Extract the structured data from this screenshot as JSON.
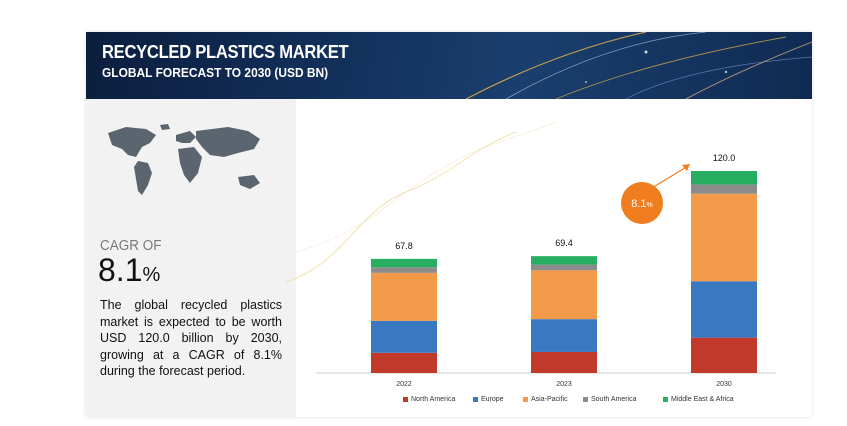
{
  "header": {
    "title": "RECYCLED PLASTICS MARKET",
    "subtitle": "GLOBAL FORECAST TO 2030 (USD BN)"
  },
  "summary": {
    "cagr_label": "CAGR OF",
    "cagr_value": "8.1",
    "cagr_unit": "%",
    "description": "The global recycled plastics market is expected to be worth USD 120.0 billion by 2030, growing at a CAGR of 8.1% during the forecast period."
  },
  "chart_data": {
    "type": "bar",
    "stacked": true,
    "categories": [
      "2022",
      "2023",
      "2030"
    ],
    "totals": [
      "67.8",
      "69.4",
      "120.0"
    ],
    "series": [
      {
        "name": "North America",
        "color": "#c0392b",
        "values": [
          12.0,
          12.5,
          21.0
        ]
      },
      {
        "name": "Europe",
        "color": "#3a78c2",
        "values": [
          19.0,
          19.5,
          33.5
        ]
      },
      {
        "name": "Asia-Pacific",
        "color": "#f39a4a",
        "values": [
          28.5,
          29.0,
          52.0
        ]
      },
      {
        "name": "South America",
        "color": "#8c8c8c",
        "values": [
          3.3,
          3.4,
          5.5
        ]
      },
      {
        "name": "Middle East & Africa",
        "color": "#27ae60",
        "values": [
          5.0,
          5.0,
          8.0
        ]
      }
    ],
    "ylim": [
      0,
      120
    ],
    "grid": false,
    "legend_position": "bottom",
    "annotation": {
      "value": "8.1",
      "unit": "%",
      "color": "#f07d1e"
    }
  }
}
